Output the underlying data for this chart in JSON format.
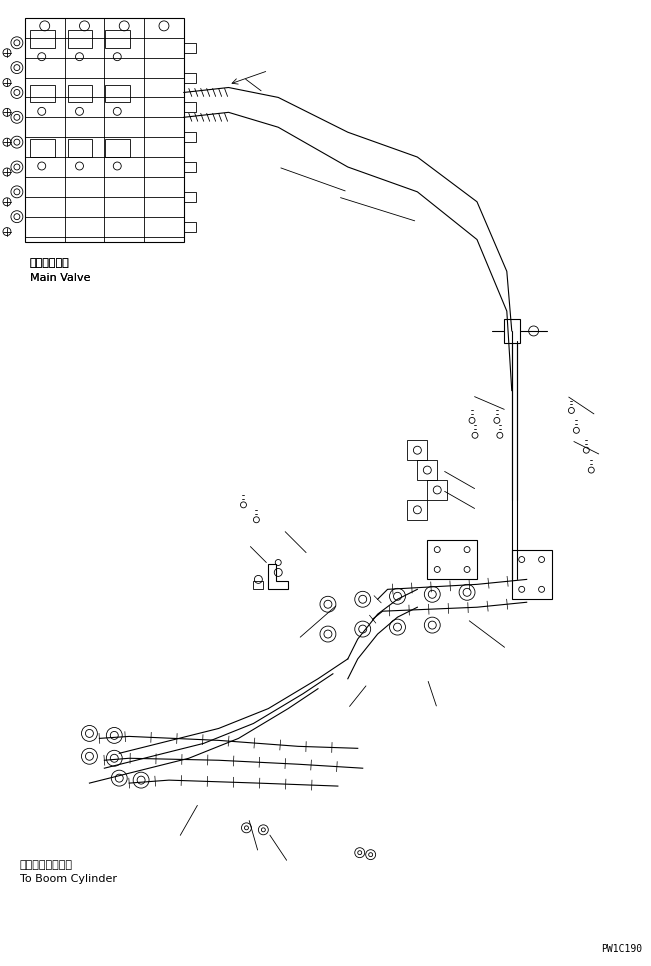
{
  "bg_color": "#ffffff",
  "line_color": "#000000",
  "fig_width": 6.51,
  "fig_height": 9.66,
  "dpi": 100,
  "label_main_valve_ja": "メインバルブ",
  "label_main_valve_en": "Main Valve",
  "label_boom_cyl_ja": "ブームシリンダへ",
  "label_boom_cyl_en": "To Boom Cylinder",
  "label_code": "PW1C190",
  "font_size_label": 8,
  "font_size_code": 7
}
